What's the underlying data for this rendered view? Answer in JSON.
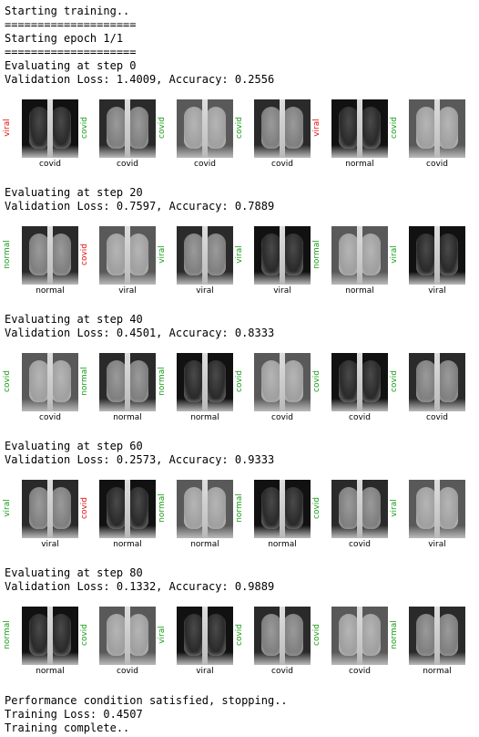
{
  "log": {
    "start": "Starting training..",
    "divider": "====================",
    "epoch": "Starting epoch 1/1",
    "end_condition": "Performance condition satisfied, stopping..",
    "training_loss": "Training Loss: 0.4507",
    "complete": "Training complete.."
  },
  "evaluations": [
    {
      "step": "Evaluating at step 0",
      "metrics": "Validation Loss: 1.4009, Accuracy: 0.2556",
      "images": [
        {
          "pred": "viral",
          "label": "covid",
          "correct": false
        },
        {
          "pred": "covid",
          "label": "covid",
          "correct": true
        },
        {
          "pred": "covid",
          "label": "covid",
          "correct": true
        },
        {
          "pred": "covid",
          "label": "covid",
          "correct": true
        },
        {
          "pred": "viral",
          "label": "normal",
          "correct": false
        },
        {
          "pred": "covid",
          "label": "covid",
          "correct": true
        }
      ]
    },
    {
      "step": "Evaluating at step 20",
      "metrics": "Validation Loss: 0.7597, Accuracy: 0.7889",
      "images": [
        {
          "pred": "normal",
          "label": "normal",
          "correct": true
        },
        {
          "pred": "covid",
          "label": "viral",
          "correct": false
        },
        {
          "pred": "viral",
          "label": "viral",
          "correct": true
        },
        {
          "pred": "viral",
          "label": "viral",
          "correct": true
        },
        {
          "pred": "normal",
          "label": "normal",
          "correct": true
        },
        {
          "pred": "viral",
          "label": "viral",
          "correct": true
        }
      ]
    },
    {
      "step": "Evaluating at step 40",
      "metrics": "Validation Loss: 0.4501, Accuracy: 0.8333",
      "images": [
        {
          "pred": "covid",
          "label": "covid",
          "correct": true
        },
        {
          "pred": "normal",
          "label": "normal",
          "correct": true
        },
        {
          "pred": "normal",
          "label": "normal",
          "correct": true
        },
        {
          "pred": "covid",
          "label": "covid",
          "correct": true
        },
        {
          "pred": "covid",
          "label": "covid",
          "correct": true
        },
        {
          "pred": "covid",
          "label": "covid",
          "correct": true
        }
      ]
    },
    {
      "step": "Evaluating at step 60",
      "metrics": "Validation Loss: 0.2573, Accuracy: 0.9333",
      "images": [
        {
          "pred": "viral",
          "label": "viral",
          "correct": true
        },
        {
          "pred": "covid",
          "label": "normal",
          "correct": false
        },
        {
          "pred": "normal",
          "label": "normal",
          "correct": true
        },
        {
          "pred": "normal",
          "label": "normal",
          "correct": true
        },
        {
          "pred": "covid",
          "label": "covid",
          "correct": true
        },
        {
          "pred": "viral",
          "label": "viral",
          "correct": true
        }
      ]
    },
    {
      "step": "Evaluating at step 80",
      "metrics": "Validation Loss: 0.1332, Accuracy: 0.9889",
      "images": [
        {
          "pred": "normal",
          "label": "normal",
          "correct": true
        },
        {
          "pred": "covid",
          "label": "covid",
          "correct": true
        },
        {
          "pred": "viral",
          "label": "viral",
          "correct": true
        },
        {
          "pred": "covid",
          "label": "covid",
          "correct": true
        },
        {
          "pred": "covid",
          "label": "covid",
          "correct": true
        },
        {
          "pred": "normal",
          "label": "normal",
          "correct": true
        }
      ]
    }
  ],
  "colors": {
    "correct": "#1a9e1a",
    "incorrect": "#e01010",
    "text": "#000000",
    "background": "#ffffff"
  },
  "image_icon": "chest-xray-image"
}
